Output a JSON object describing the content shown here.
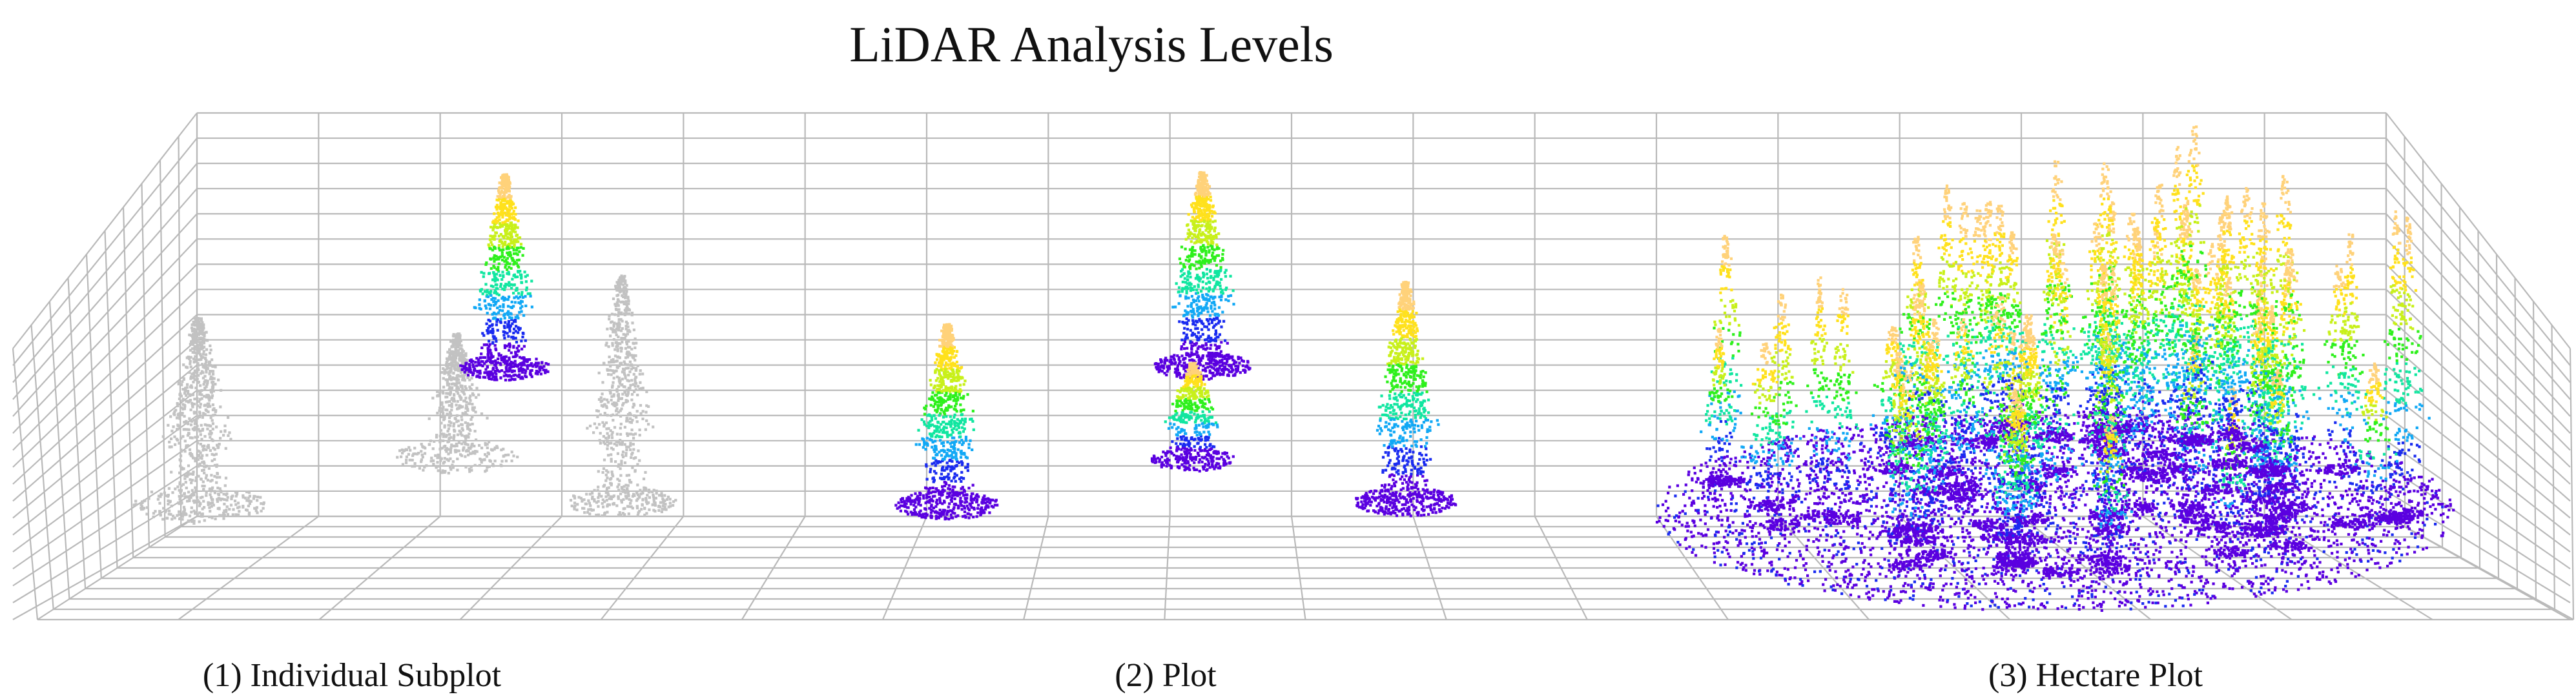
{
  "figure": {
    "title": "LiDAR Analysis Levels",
    "panels": [
      {
        "label": "(1) Individual Subplot",
        "colored": false
      },
      {
        "label": "(2) Plot",
        "colored": true
      },
      {
        "label": "(3) Hectare Plot",
        "colored": true
      }
    ],
    "colormap": [
      "#5a00e0",
      "#1a2bf0",
      "#11a8f5",
      "#10e6a0",
      "#2ef01c",
      "#c8f01a",
      "#ffe11c",
      "#ffd27a"
    ],
    "gray": "#c2c2c2"
  }
}
